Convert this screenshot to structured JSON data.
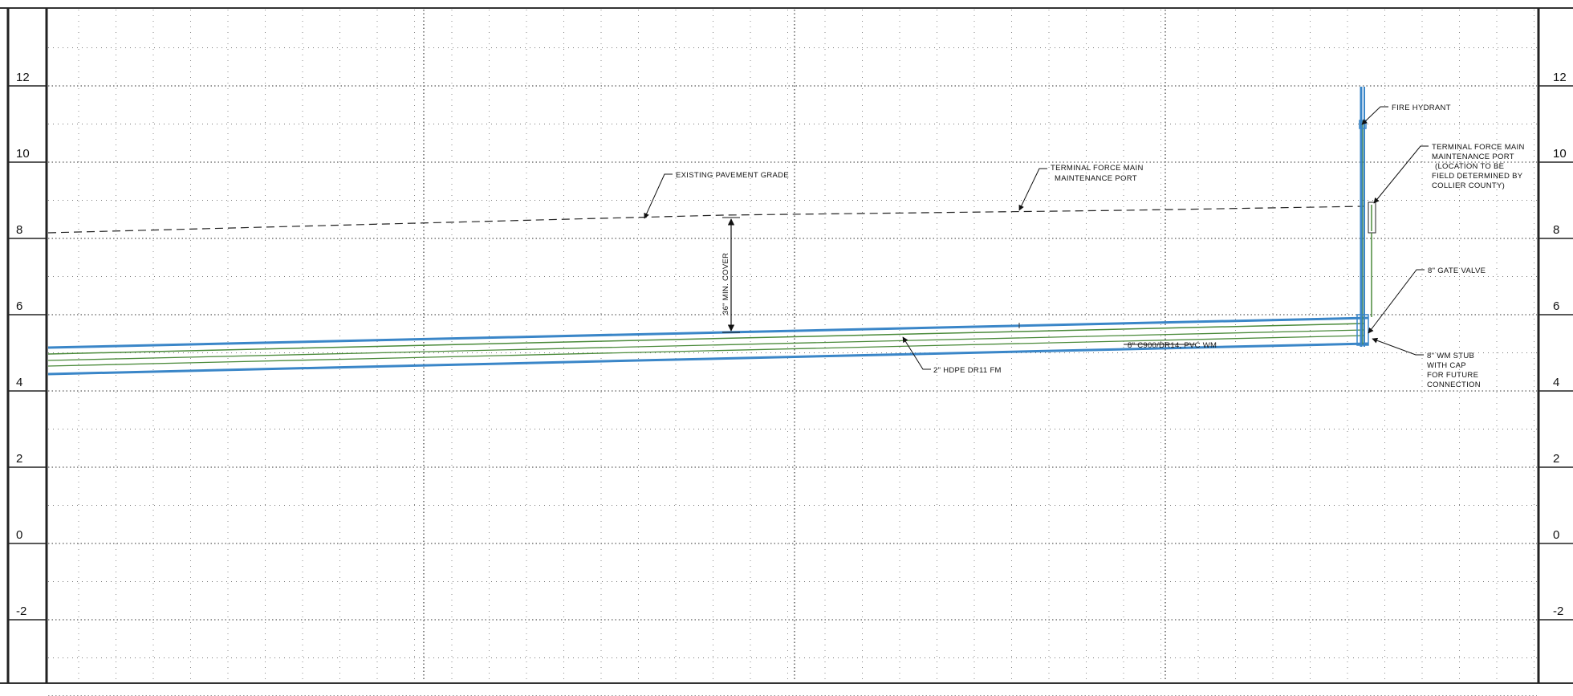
{
  "profile": {
    "elevation_labels": [
      "12",
      "10",
      "8",
      "6",
      "4",
      "2",
      "0",
      "-2"
    ],
    "elevation_range_ft": [
      -4,
      14
    ],
    "grid": true,
    "colors": {
      "force_main": "#3a86c8",
      "water_main": "#4a8a3a",
      "line_work": "#111111",
      "grid": "#777777"
    }
  },
  "annotations": {
    "existing_pavement_grade": "EXISTING PAVEMENT GRADE",
    "force_main_port": [
      "TERMINAL FORCE MAIN",
      "MAINTENANCE PORT"
    ],
    "min_cover": "36\" MIN. COVER",
    "pvc_wm": "8\" C900/DR14, PVC WM",
    "hdpe_fm": "2\" HDPE DR11 FM",
    "fire_hydrant": "FIRE HYDRANT",
    "terminal_port": [
      "TERMINAL FORCE MAIN",
      "MAINTENANCE PORT",
      "(LOCATION TO BE",
      "FIELD DETERMINED BY",
      "COLLIER COUNTY)"
    ],
    "gate_valve": "8\" GATE VALVE",
    "wm_stub": [
      "8\" WM STUB",
      "WITH CAP",
      "FOR FUTURE",
      "CONNECTION"
    ]
  }
}
